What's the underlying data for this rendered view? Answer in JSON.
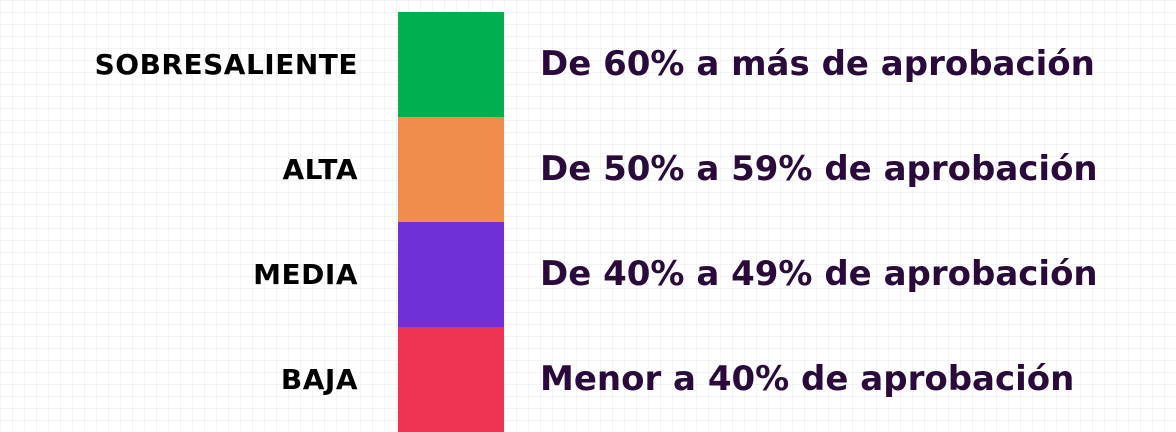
{
  "levels": [
    {
      "label": "SOBRESALIENTE",
      "color": "#00b050",
      "description": "De 60% a más de aprobación"
    },
    {
      "label": "ALTA",
      "color": "#f08c4c",
      "description": "De 50% a 59% de aprobación"
    },
    {
      "label": "MEDIA",
      "color": "#7030d8",
      "description": "De 40% a 49% de aprobación"
    },
    {
      "label": "BAJA",
      "color": "#ee3350",
      "description": "Menor a 40% de aprobación"
    }
  ]
}
